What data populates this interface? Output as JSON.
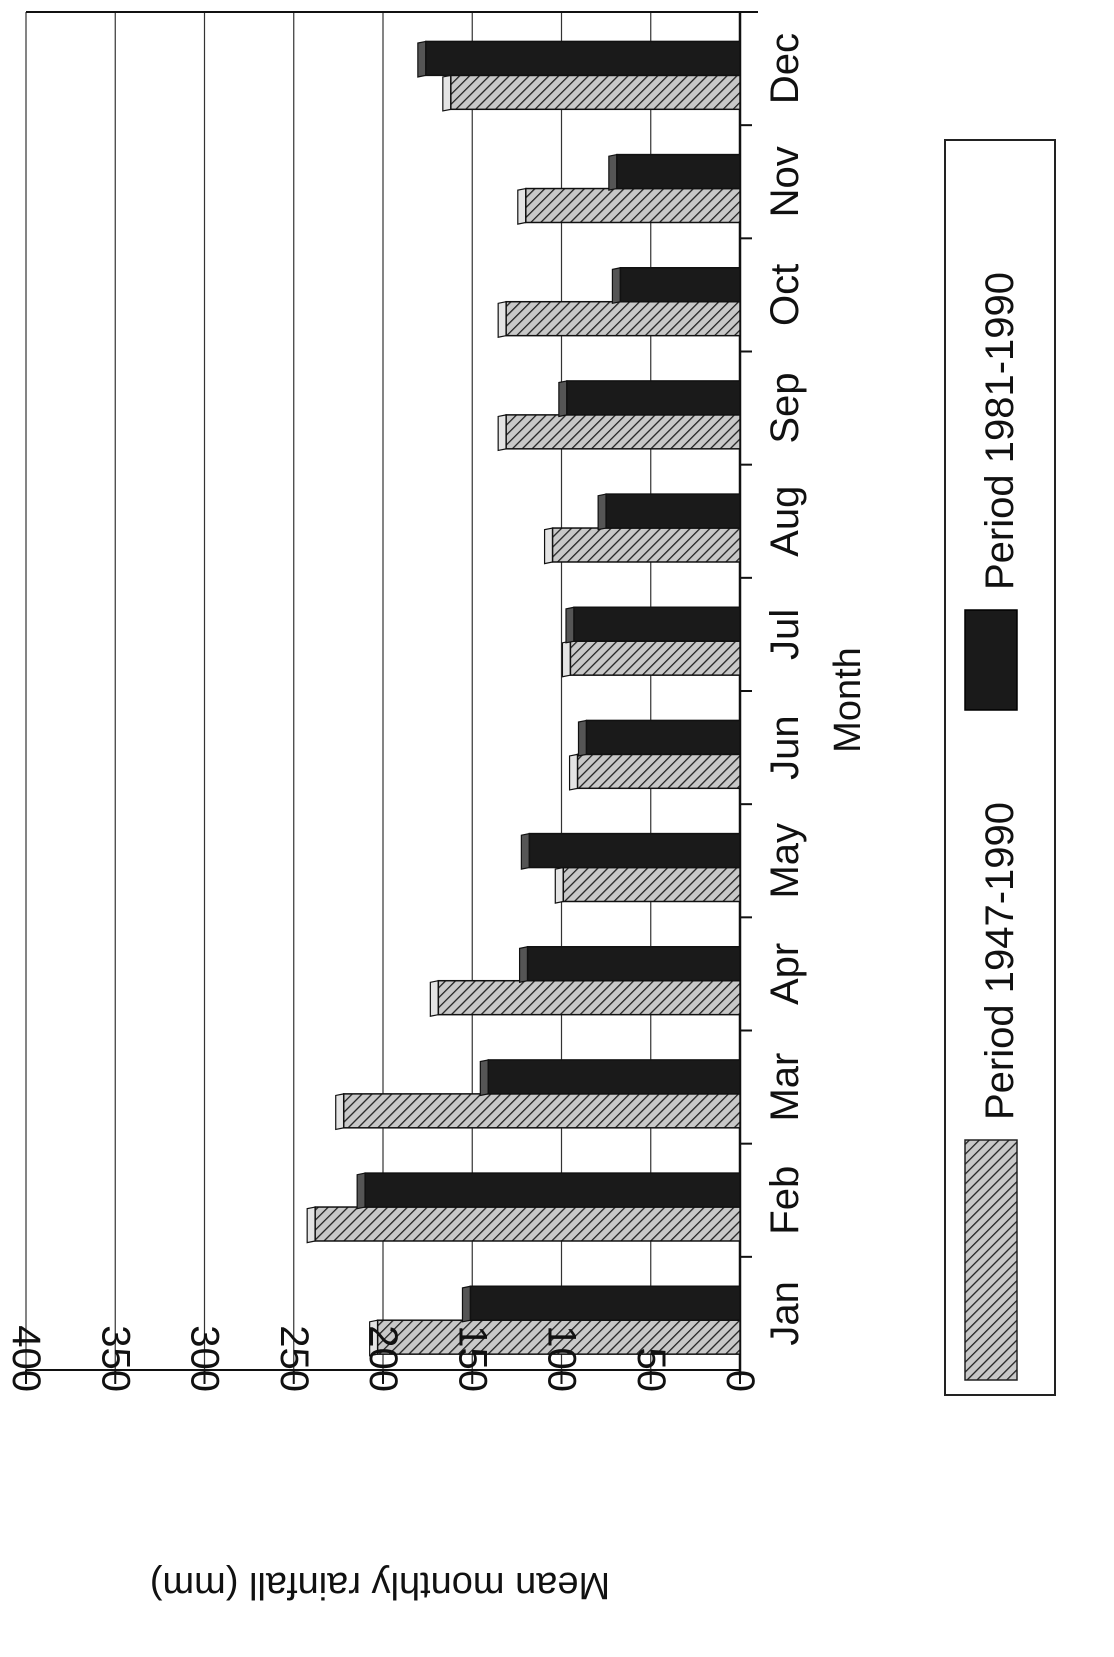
{
  "chart_data": {
    "type": "bar",
    "orientation": "rotated-90-clockwise",
    "title": "",
    "xlabel": "Month",
    "ylabel": "Mean monthly rainfall (mm)",
    "ylim": [
      0,
      400
    ],
    "yticks": [
      "0",
      "50",
      "100",
      "150",
      "200",
      "250",
      "300",
      "350",
      "400"
    ],
    "grid": true,
    "legend_position": "bottom",
    "categories": [
      "Jan",
      "Feb",
      "Mar",
      "Apr",
      "May",
      "Jun",
      "Jul",
      "Aug",
      "Sep",
      "Oct",
      "Nov",
      "Dec"
    ],
    "series": [
      {
        "name": "Period 1947-1990",
        "pattern": "hatched",
        "color": "#a0a0a0",
        "values": [
          203,
          238,
          222,
          169,
          99,
          91,
          95,
          105,
          131,
          131,
          120,
          162
        ]
      },
      {
        "name": "Period 1981-1990",
        "pattern": "solid",
        "color": "#1a1a1a",
        "values": [
          151,
          210,
          141,
          119,
          118,
          86,
          93,
          75,
          97,
          67,
          69,
          176
        ]
      }
    ]
  }
}
